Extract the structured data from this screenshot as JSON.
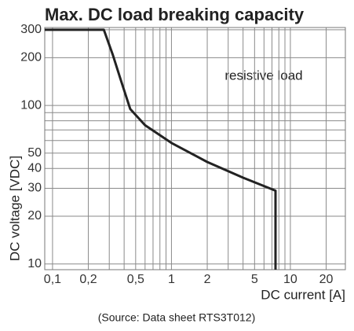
{
  "chart_data": {
    "type": "line",
    "title": "Max. DC load breaking capacity",
    "x_label": "DC current [A]",
    "y_label": "DC voltage [VDC]",
    "annotation": "resistive load",
    "source": "(Source: Data sheet RTS3T012)",
    "x_log": true,
    "y_log": true,
    "grid": true,
    "color": "#222222",
    "x": [
      0.086,
      0.27,
      0.32,
      0.38,
      0.45,
      0.6,
      1,
      2,
      4,
      7.5,
      7.5
    ],
    "values": [
      300,
      300,
      210,
      140,
      95,
      75,
      58,
      44,
      35,
      29,
      9.2
    ],
    "xlim": [
      0.086,
      29
    ],
    "ylim": [
      9.2,
      310
    ],
    "xticks": [
      {
        "value": 0.1,
        "label": "0,1"
      },
      {
        "value": 0.2,
        "label": "0,2"
      },
      {
        "value": 0.5,
        "label": "0,5"
      },
      1,
      2,
      5,
      10,
      20
    ],
    "yticks": [
      10,
      20,
      30,
      40,
      50,
      100,
      200,
      300
    ],
    "x_minor_gridlines": [
      0.3,
      0.4,
      0.6,
      0.7,
      0.8,
      0.9,
      3,
      4,
      6,
      7,
      8,
      9
    ],
    "y_minor_gridlines": [
      60,
      70,
      80,
      90
    ]
  }
}
